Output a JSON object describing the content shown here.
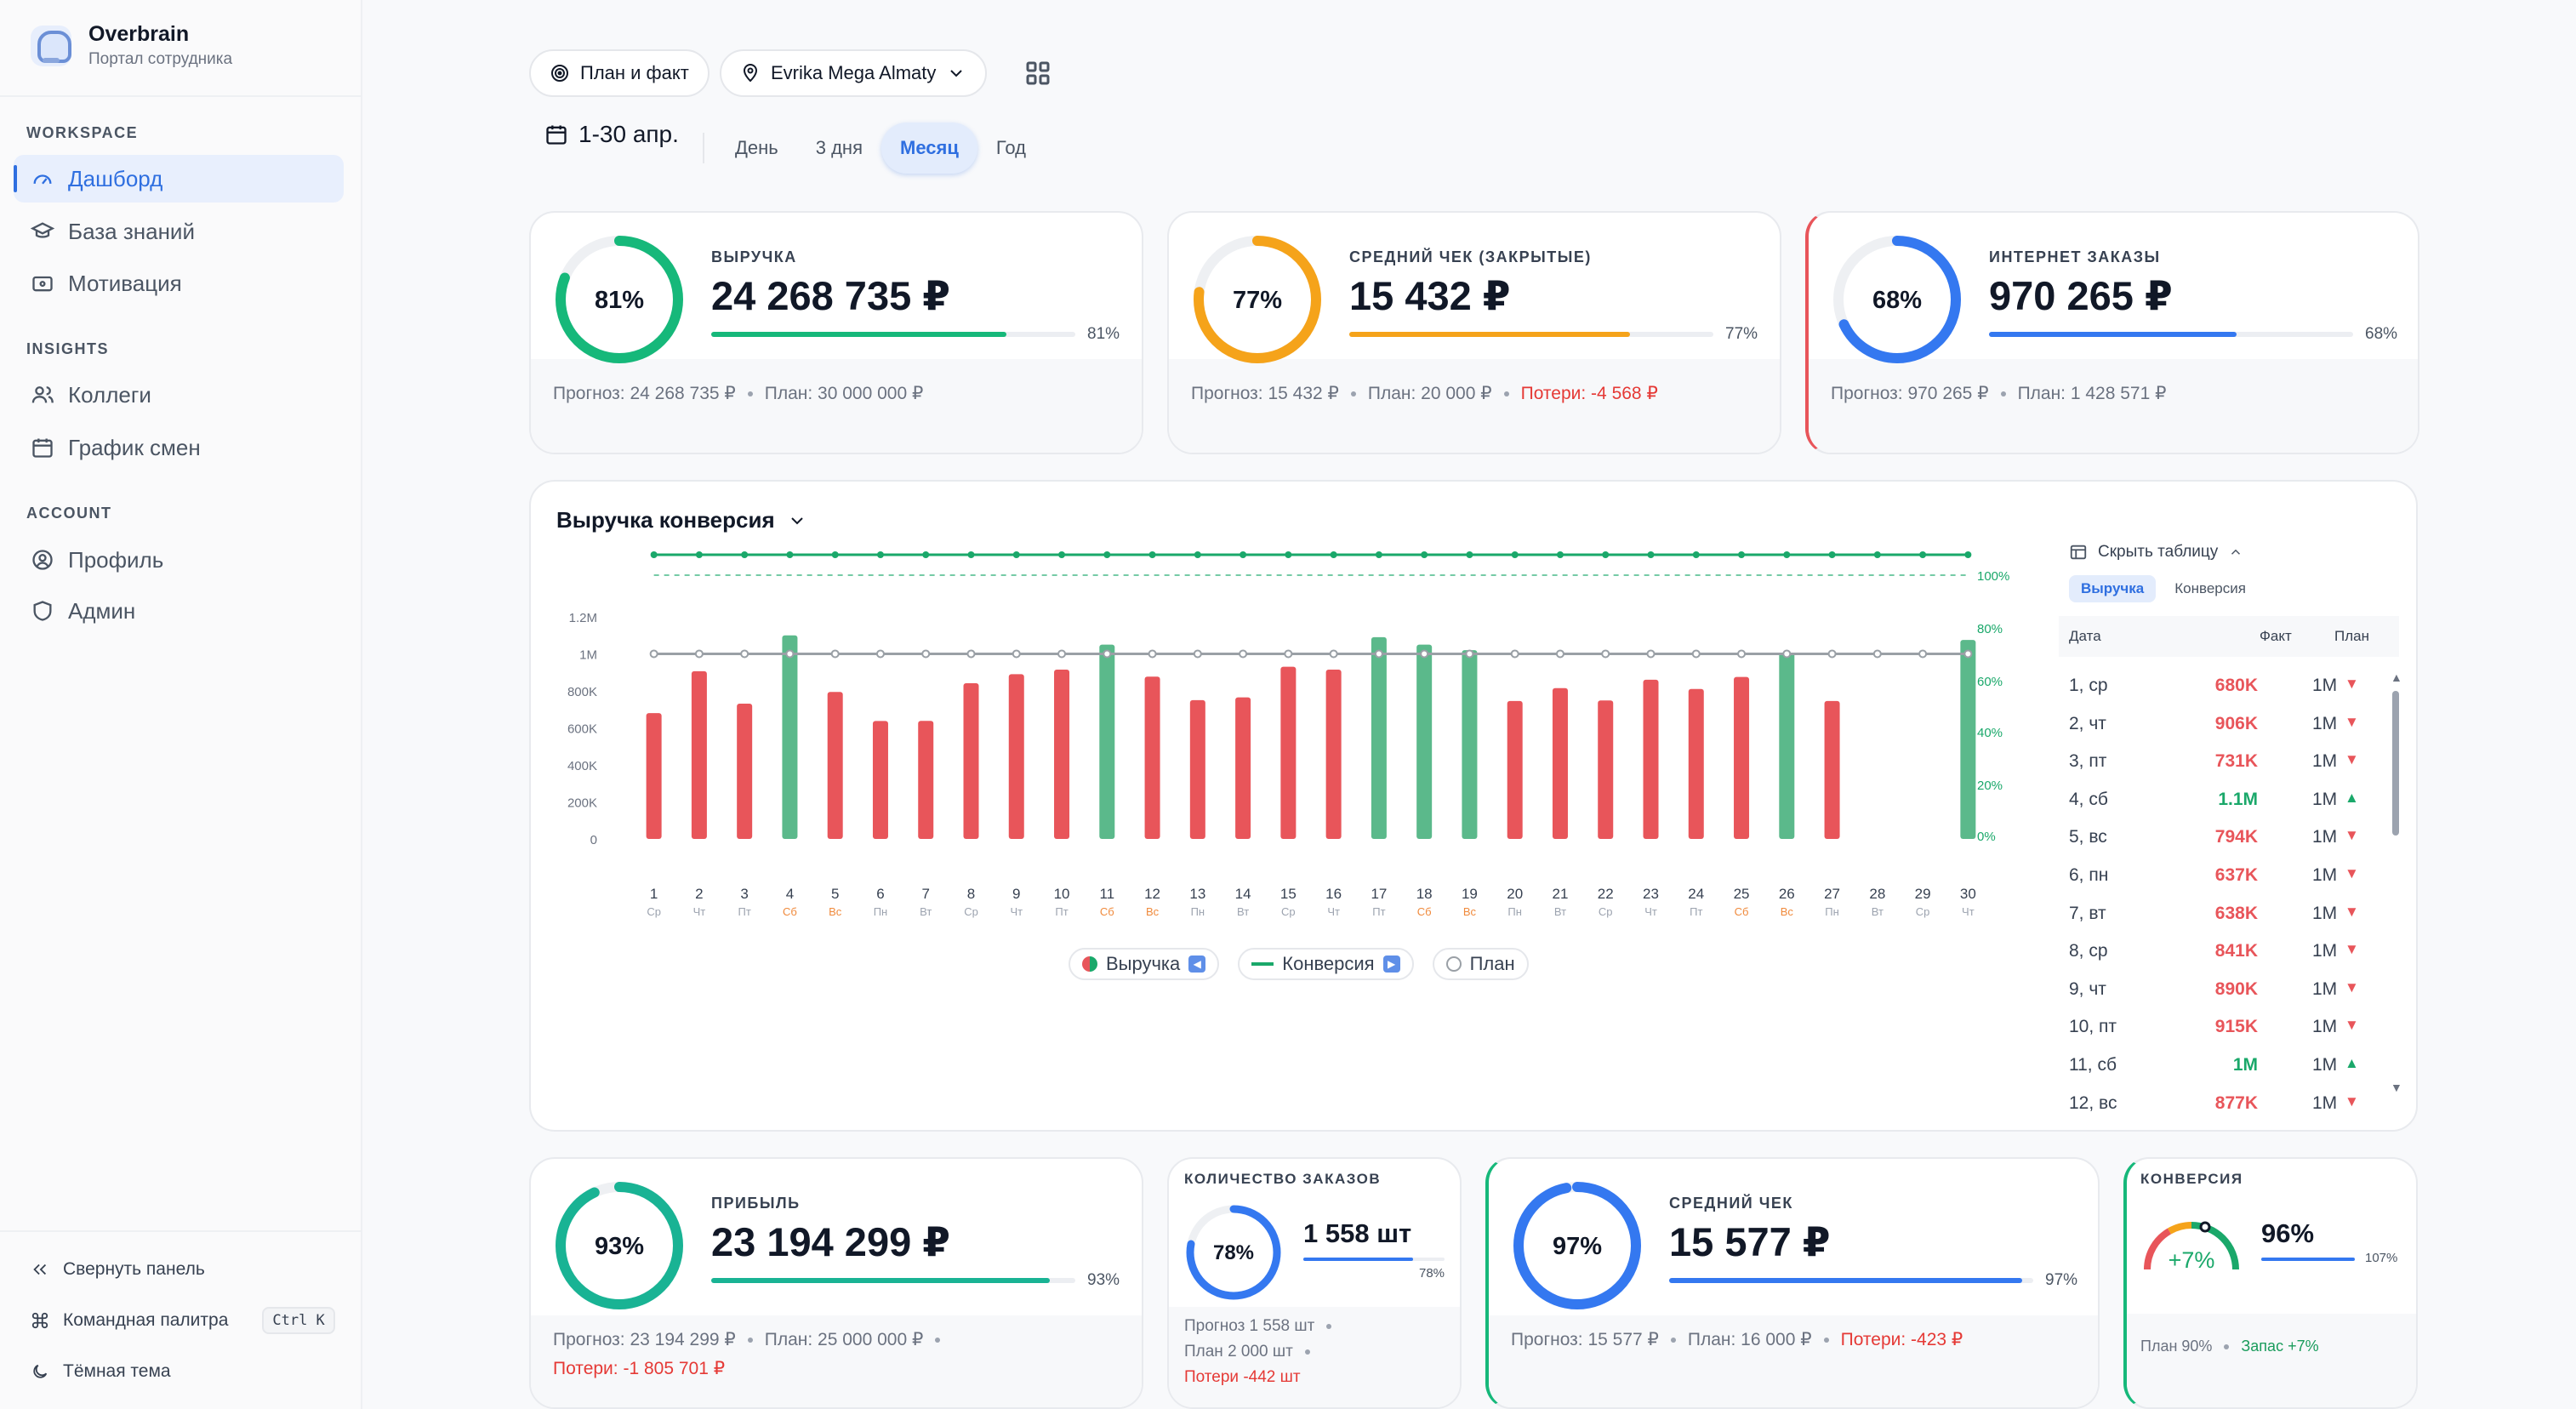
{
  "brand": {
    "title": "Overbrain",
    "subtitle": "Портал сотрудника"
  },
  "sidebar": {
    "sections": [
      {
        "title": "WORKSPACE",
        "items": [
          {
            "label": "Дашборд",
            "icon": "gauge-icon",
            "active": true
          },
          {
            "label": "База знаний",
            "icon": "graduation-cap-icon"
          },
          {
            "label": "Мотивация",
            "icon": "wallet-icon"
          }
        ]
      },
      {
        "title": "INSIGHTS",
        "items": [
          {
            "label": "Коллеги",
            "icon": "users-icon"
          },
          {
            "label": "График смен",
            "icon": "calendar-icon"
          }
        ]
      },
      {
        "title": "ACCOUNT",
        "items": [
          {
            "label": "Профиль",
            "icon": "user-circle-icon"
          },
          {
            "label": "Админ",
            "icon": "shield-icon"
          }
        ]
      }
    ],
    "footer": {
      "collapse": "Свернуть панель",
      "palette": "Командная палитра",
      "palette_kbd": "Ctrl K",
      "theme": "Тёмная тема"
    }
  },
  "toolbar": {
    "mode": "План и факт",
    "store": "Evrika Mega Almaty",
    "period": "1-30 апр.",
    "ranges": [
      "День",
      "3 дня",
      "Месяц",
      "Год"
    ],
    "active_range": "Месяц"
  },
  "kpi_top": [
    {
      "label": "ВЫРУЧКА",
      "value": "24 268 735 ₽",
      "pct": "81%",
      "progress": 0.81,
      "color": "#16b87a",
      "forecast": "Прогноз: 24 268 735 ₽",
      "plan": "План: 30 000 000 ₽",
      "loss": ""
    },
    {
      "label": "СРЕДНИЙ ЧЕК (ЗАКРЫТЫЕ)",
      "value": "15 432 ₽",
      "pct": "77%",
      "progress": 0.77,
      "color": "#f5a31a",
      "forecast": "Прогноз: 15 432 ₽",
      "plan": "План: 20 000 ₽",
      "loss": "Потери: -4 568 ₽"
    },
    {
      "label": "ИНТЕРНЕТ ЗАКАЗЫ",
      "value": "970 265 ₽",
      "pct": "68%",
      "progress": 0.68,
      "color": "#3478f0",
      "forecast": "Прогноз: 970 265 ₽",
      "plan": "План: 1 428 571 ₽",
      "loss": ""
    }
  ],
  "chart": {
    "title": "Выручка конверсия",
    "legend": {
      "revenue": "Выручка",
      "conversion": "Конверсия",
      "plan": "План"
    },
    "table": {
      "toggle": "Скрыть таблицу",
      "tabs": [
        "Выручка",
        "Конверсия"
      ],
      "cols": [
        "Дата",
        "Факт",
        "План"
      ],
      "rows": [
        {
          "d": "1, ср",
          "f": "680K",
          "p": "1M",
          "up": false
        },
        {
          "d": "2, чт",
          "f": "906K",
          "p": "1M",
          "up": false
        },
        {
          "d": "3, пт",
          "f": "731K",
          "p": "1M",
          "up": false
        },
        {
          "d": "4, сб",
          "f": "1.1M",
          "p": "1M",
          "up": true
        },
        {
          "d": "5, вс",
          "f": "794K",
          "p": "1M",
          "up": false
        },
        {
          "d": "6, пн",
          "f": "637K",
          "p": "1M",
          "up": false
        },
        {
          "d": "7, вт",
          "f": "638K",
          "p": "1M",
          "up": false
        },
        {
          "d": "8, ср",
          "f": "841K",
          "p": "1M",
          "up": false
        },
        {
          "d": "9, чт",
          "f": "890K",
          "p": "1M",
          "up": false
        },
        {
          "d": "10, пт",
          "f": "915K",
          "p": "1M",
          "up": false
        },
        {
          "d": "11, сб",
          "f": "1M",
          "p": "1M",
          "up": true
        },
        {
          "d": "12, вс",
          "f": "877K",
          "p": "1M",
          "up": false
        }
      ]
    }
  },
  "chart_data": {
    "type": "bar",
    "categories": [
      "1",
      "2",
      "3",
      "4",
      "5",
      "6",
      "7",
      "8",
      "9",
      "10",
      "11",
      "12",
      "13",
      "14",
      "15",
      "16",
      "17",
      "18",
      "19",
      "20",
      "21",
      "22",
      "23",
      "24",
      "25",
      "26",
      "27",
      "28",
      "29",
      "30"
    ],
    "weekdays": [
      "Ср",
      "Чт",
      "Пт",
      "Сб",
      "Вс",
      "Пн",
      "Вт",
      "Ср",
      "Чт",
      "Пт",
      "Сб",
      "Вс",
      "Пн",
      "Вт",
      "Ср",
      "Чт",
      "Пт",
      "Сб",
      "Вс",
      "Пн",
      "Вт",
      "Ср",
      "Чт",
      "Пт",
      "Сб",
      "Вс",
      "Пн",
      "Вт",
      "Ср",
      "Чт"
    ],
    "series": [
      {
        "name": "Выручка",
        "values": [
          680000,
          906000,
          731000,
          1100000,
          794000,
          637000,
          638000,
          841000,
          890000,
          915000,
          1050000,
          877000,
          750000,
          765000,
          930000,
          915000,
          1090000,
          1050000,
          1020000,
          745000,
          815000,
          748000,
          860000,
          810000,
          875000,
          1005000,
          745000,
          0,
          0,
          1075000
        ]
      },
      {
        "name": "Конверсия",
        "values": [
          96,
          96,
          96,
          96,
          96,
          96,
          96,
          96,
          96,
          96,
          96,
          96,
          96,
          96,
          96,
          96,
          96,
          96,
          96,
          96,
          96,
          96,
          96,
          96,
          96,
          96,
          96,
          96,
          96,
          96
        ]
      },
      {
        "name": "План",
        "values": [
          1000000,
          1000000,
          1000000,
          1000000,
          1000000,
          1000000,
          1000000,
          1000000,
          1000000,
          1000000,
          1000000,
          1000000,
          1000000,
          1000000,
          1000000,
          1000000,
          1000000,
          1000000,
          1000000,
          1000000,
          1000000,
          1000000,
          1000000,
          1000000,
          1000000,
          1000000,
          1000000,
          1000000,
          1000000,
          1000000
        ]
      }
    ],
    "y_left_ticks": [
      "0",
      "200K",
      "400K",
      "600K",
      "800K",
      "1M",
      "1.2M"
    ],
    "y_right_ticks": [
      "0%",
      "20%",
      "40%",
      "60%",
      "80%",
      "100%"
    ],
    "ylim": [
      0,
      1333000
    ],
    "y2lim": [
      0,
      100
    ],
    "colors": {
      "above": "#5bb98b",
      "below": "#e8555a",
      "conversion": "#1aa86a",
      "plan": "#9aa0a6"
    }
  },
  "kpi_bottom": {
    "profit": {
      "label": "ПРИБЫЛЬ",
      "value": "23 194 299 ₽",
      "pct": "93%",
      "progress": 0.93,
      "forecast": "Прогноз: 23 194 299 ₽",
      "plan": "План: 25 000 000 ₽",
      "loss": "Потери: -1 805 701 ₽"
    },
    "orders": {
      "label": "КОЛИЧЕСТВО ЗАКАЗОВ",
      "value": "1 558 шт",
      "pct": "78%",
      "progress": 0.78,
      "forecast": "Прогноз 1 558 шт",
      "plan": "План 2 000 шт",
      "loss": "Потери -442 шт"
    },
    "avg": {
      "label": "СРЕДНИЙ ЧЕК",
      "value": "15 577 ₽",
      "pct": "97%",
      "progress": 0.97,
      "forecast": "Прогноз: 15 577 ₽",
      "plan": "План: 16 000 ₽",
      "loss": "Потери: -423 ₽"
    },
    "conv": {
      "label": "КОНВЕРСИЯ",
      "value": "96%",
      "delta": "+7%",
      "pct": "107%",
      "progress": 1.0,
      "plan": "План 90%",
      "reserve": "Запас +7%"
    }
  }
}
